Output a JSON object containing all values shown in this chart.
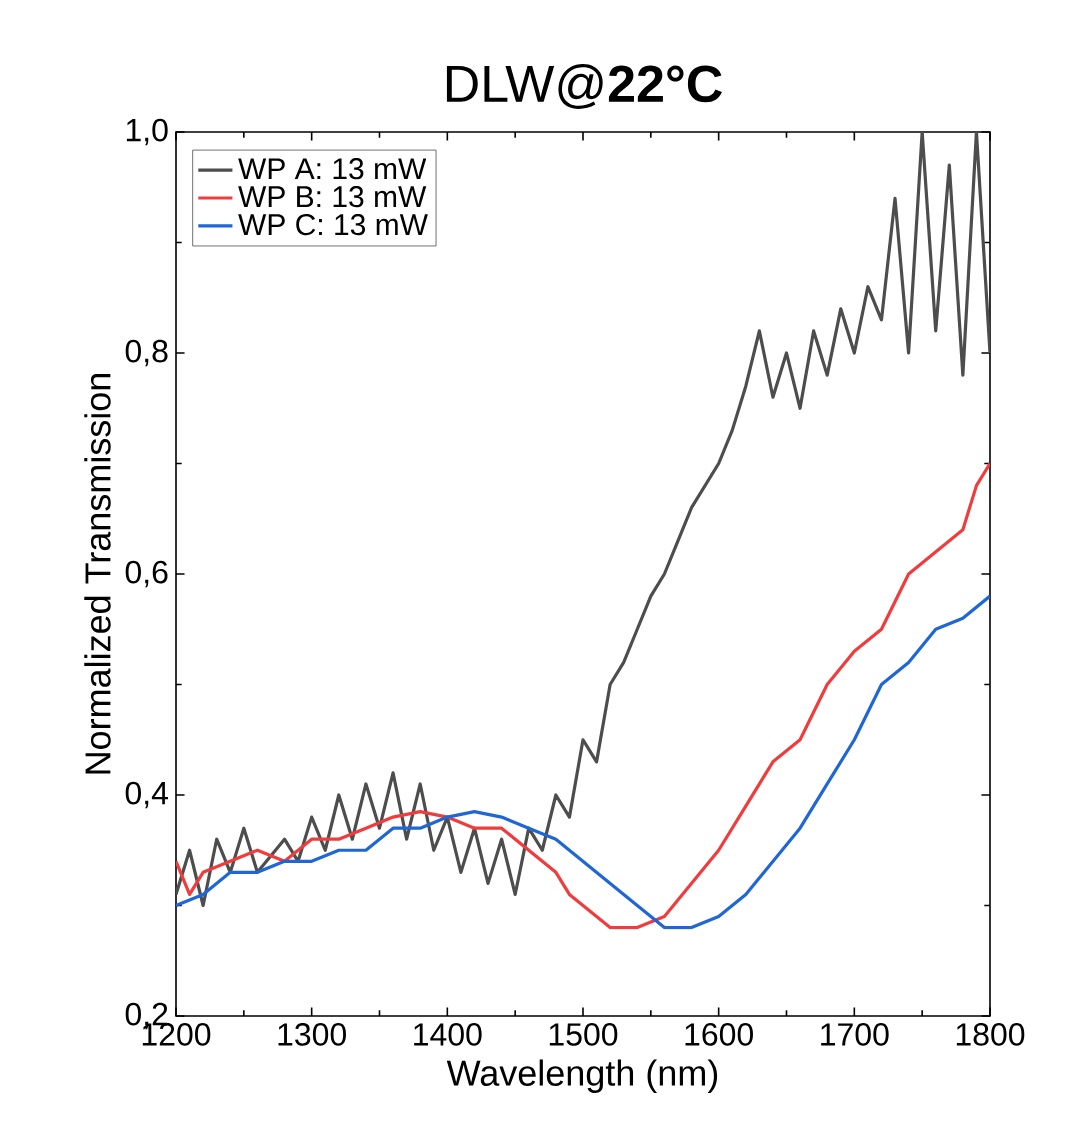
{
  "chart_data": {
    "type": "line",
    "title": "DLW@**22°C**",
    "xlabel": "Wavelength (nm)",
    "ylabel": "Normalized Transmission",
    "xlim": [
      1200,
      1800
    ],
    "xticks": [
      1200,
      1300,
      1400,
      1500,
      1600,
      1700,
      1800
    ],
    "ylim": [
      0.2,
      1.0
    ],
    "yticks": [
      {
        "value": 0.2,
        "label": "0,2"
      },
      {
        "value": 0.4,
        "label": "0,4"
      },
      {
        "value": 0.6,
        "label": "0,6"
      },
      {
        "value": 0.8,
        "label": "0,8"
      },
      {
        "value": 1.0,
        "label": "1,0"
      }
    ],
    "grid": false,
    "legend": "top left",
    "marker": "none",
    "line_style": "solid",
    "series": [
      {
        "name": "WP A: 13 mW",
        "color": "#4d4d4d",
        "x": [
          1200,
          1210,
          1220,
          1230,
          1240,
          1250,
          1260,
          1280,
          1290,
          1300,
          1310,
          1320,
          1330,
          1340,
          1350,
          1360,
          1370,
          1380,
          1390,
          1400,
          1410,
          1420,
          1430,
          1440,
          1450,
          1460,
          1470,
          1480,
          1490,
          1500,
          1510,
          1520,
          1530,
          1540,
          1550,
          1560,
          1570,
          1580,
          1590,
          1600,
          1610,
          1620,
          1630,
          1640,
          1650,
          1660,
          1670,
          1680,
          1690,
          1700,
          1710,
          1720,
          1730,
          1740,
          1750,
          1760,
          1770,
          1780,
          1790,
          1800
        ],
        "values": [
          0.31,
          0.35,
          0.3,
          0.36,
          0.33,
          0.37,
          0.33,
          0.36,
          0.34,
          0.38,
          0.35,
          0.4,
          0.36,
          0.41,
          0.37,
          0.42,
          0.36,
          0.41,
          0.35,
          0.38,
          0.33,
          0.37,
          0.32,
          0.36,
          0.31,
          0.37,
          0.35,
          0.4,
          0.38,
          0.45,
          0.43,
          0.5,
          0.52,
          0.55,
          0.58,
          0.6,
          0.63,
          0.66,
          0.68,
          0.7,
          0.73,
          0.77,
          0.82,
          0.76,
          0.8,
          0.75,
          0.82,
          0.78,
          0.84,
          0.8,
          0.86,
          0.83,
          0.94,
          0.8,
          1.0,
          0.82,
          0.97,
          0.78,
          1.0,
          0.8
        ]
      },
      {
        "name": "WP B: 13 mW",
        "color": "#f03c3c",
        "x": [
          1200,
          1210,
          1220,
          1240,
          1260,
          1280,
          1300,
          1320,
          1340,
          1360,
          1380,
          1400,
          1420,
          1440,
          1460,
          1480,
          1490,
          1500,
          1520,
          1540,
          1560,
          1580,
          1600,
          1620,
          1640,
          1660,
          1680,
          1700,
          1720,
          1740,
          1760,
          1780,
          1790,
          1800
        ],
        "values": [
          0.34,
          0.31,
          0.33,
          0.34,
          0.35,
          0.34,
          0.36,
          0.36,
          0.37,
          0.38,
          0.385,
          0.38,
          0.37,
          0.37,
          0.35,
          0.33,
          0.31,
          0.3,
          0.28,
          0.28,
          0.29,
          0.32,
          0.35,
          0.39,
          0.43,
          0.45,
          0.5,
          0.53,
          0.55,
          0.6,
          0.62,
          0.64,
          0.68,
          0.7
        ]
      },
      {
        "name": "WP C: 13 mW",
        "color": "#1f66d6",
        "x": [
          1200,
          1220,
          1240,
          1260,
          1280,
          1300,
          1320,
          1340,
          1360,
          1380,
          1400,
          1420,
          1440,
          1460,
          1480,
          1500,
          1520,
          1540,
          1560,
          1580,
          1600,
          1620,
          1640,
          1660,
          1680,
          1700,
          1720,
          1740,
          1760,
          1780,
          1800
        ],
        "values": [
          0.3,
          0.31,
          0.33,
          0.33,
          0.34,
          0.34,
          0.35,
          0.35,
          0.37,
          0.37,
          0.38,
          0.385,
          0.38,
          0.37,
          0.36,
          0.34,
          0.32,
          0.3,
          0.28,
          0.28,
          0.29,
          0.31,
          0.34,
          0.37,
          0.41,
          0.45,
          0.5,
          0.52,
          0.55,
          0.56,
          0.58
        ]
      }
    ]
  }
}
